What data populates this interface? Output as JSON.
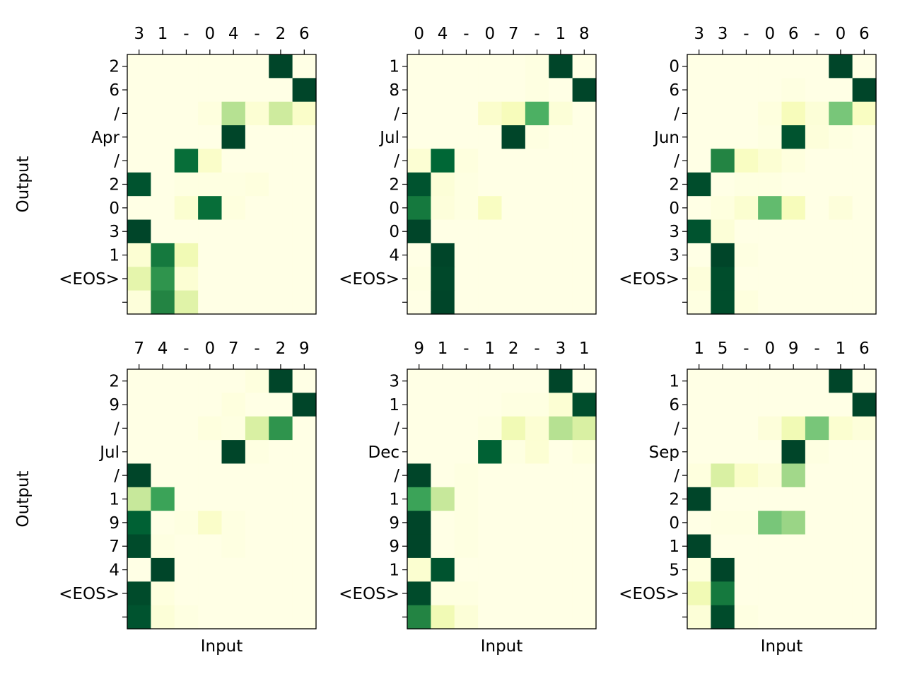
{
  "chart_data": [
    {
      "type": "heatmap",
      "x": [
        "3",
        "1",
        "-",
        "0",
        "4",
        "-",
        "2",
        "6"
      ],
      "y": [
        "2",
        "6",
        "/",
        "Apr",
        "/",
        "2",
        "0",
        "3",
        "1",
        "<EOS>",
        ""
      ],
      "xlabel": "",
      "ylabel": "Output",
      "colormap": "Greens",
      "values": [
        [
          0,
          0,
          0,
          0,
          0,
          0,
          1,
          0
        ],
        [
          0,
          0,
          0,
          0,
          0,
          0,
          0,
          1
        ],
        [
          0,
          0,
          0,
          0.02,
          0.35,
          0.05,
          0.28,
          0.08
        ],
        [
          0,
          0,
          0,
          0,
          1,
          0,
          0,
          0
        ],
        [
          0,
          0,
          0.85,
          0.08,
          0,
          0,
          0,
          0
        ],
        [
          0.95,
          0,
          0.01,
          0.01,
          0.01,
          0.02,
          0,
          0
        ],
        [
          0,
          0,
          0.06,
          0.85,
          0.02,
          0,
          0,
          0
        ],
        [
          1,
          0,
          0,
          0,
          0,
          0,
          0,
          0
        ],
        [
          0.05,
          0.8,
          0.15,
          0,
          0,
          0,
          0,
          0
        ],
        [
          0.2,
          0.7,
          0.05,
          0,
          0,
          0,
          0,
          0
        ],
        [
          0.03,
          0.75,
          0.22,
          0,
          0,
          0,
          0,
          0
        ]
      ]
    },
    {
      "type": "heatmap",
      "x": [
        "0",
        "4",
        "-",
        "0",
        "7",
        "-",
        "1",
        "8"
      ],
      "y": [
        "1",
        "8",
        "/",
        "Jul",
        "/",
        "2",
        "0",
        "0",
        "4",
        "<EOS>",
        ""
      ],
      "xlabel": "",
      "ylabel": "",
      "colormap": "Greens",
      "values": [
        [
          0,
          0,
          0,
          0,
          0,
          0.01,
          1,
          0
        ],
        [
          0,
          0,
          0,
          0,
          0,
          0.01,
          0,
          1
        ],
        [
          0,
          0,
          0,
          0.07,
          0.12,
          0.6,
          0.04,
          0
        ],
        [
          0,
          0,
          0,
          0,
          1,
          0.01,
          0,
          0
        ],
        [
          0.05,
          0.88,
          0.02,
          0,
          0,
          0,
          0,
          0
        ],
        [
          0.95,
          0.04,
          0.01,
          0,
          0,
          0,
          0,
          0
        ],
        [
          0.8,
          0.03,
          0.01,
          0.1,
          0,
          0,
          0,
          0
        ],
        [
          1,
          0,
          0,
          0,
          0,
          0,
          0,
          0
        ],
        [
          0,
          1,
          0,
          0,
          0,
          0,
          0,
          0
        ],
        [
          0.01,
          0.99,
          0,
          0,
          0,
          0,
          0,
          0
        ],
        [
          0,
          1,
          0,
          0,
          0,
          0,
          0,
          0
        ]
      ]
    },
    {
      "type": "heatmap",
      "x": [
        "3",
        "3",
        "-",
        "0",
        "6",
        "-",
        "0",
        "6"
      ],
      "y": [
        "0",
        "6",
        "/",
        "Jun",
        "/",
        "2",
        "0",
        "3",
        "3",
        "<EOS>",
        ""
      ],
      "xlabel": "",
      "ylabel": "",
      "colormap": "Greens",
      "values": [
        [
          0,
          0,
          0,
          0,
          0,
          0,
          1,
          0
        ],
        [
          0,
          0,
          0,
          0,
          0.01,
          0,
          0,
          1
        ],
        [
          0,
          0,
          0,
          0.02,
          0.12,
          0.04,
          0.5,
          0.1
        ],
        [
          0,
          0,
          0,
          0.01,
          0.95,
          0.03,
          0.01,
          0
        ],
        [
          0,
          0.75,
          0.1,
          0.05,
          0.02,
          0,
          0,
          0
        ],
        [
          0.97,
          0,
          0.01,
          0.01,
          0,
          0,
          0,
          0
        ],
        [
          0,
          0.02,
          0.06,
          0.55,
          0.12,
          0,
          0.03,
          0
        ],
        [
          0.95,
          0.04,
          0,
          0,
          0,
          0,
          0,
          0
        ],
        [
          0,
          1,
          0.01,
          0,
          0,
          0,
          0,
          0
        ],
        [
          0.03,
          0.97,
          0,
          0,
          0,
          0,
          0,
          0
        ],
        [
          0.01,
          0.97,
          0.02,
          0,
          0,
          0,
          0,
          0
        ]
      ]
    },
    {
      "type": "heatmap",
      "x": [
        "7",
        "4",
        "-",
        "0",
        "7",
        "-",
        "2",
        "9"
      ],
      "y": [
        "2",
        "9",
        "/",
        "Jul",
        "/",
        "1",
        "9",
        "7",
        "4",
        "<EOS>",
        ""
      ],
      "xlabel": "Input",
      "ylabel": "Output",
      "colormap": "Greens",
      "values": [
        [
          0,
          0,
          0,
          0,
          0,
          0.02,
          1,
          0
        ],
        [
          0,
          0,
          0,
          0,
          0.02,
          0,
          0,
          1
        ],
        [
          0,
          0,
          0,
          0.02,
          0.01,
          0.25,
          0.7,
          0
        ],
        [
          0,
          0,
          0,
          0,
          1,
          0.01,
          0,
          0
        ],
        [
          1,
          0,
          0,
          0,
          0,
          0,
          0,
          0
        ],
        [
          0.3,
          0.65,
          0,
          0,
          0,
          0,
          0,
          0
        ],
        [
          0.9,
          0,
          0.01,
          0.08,
          0.01,
          0,
          0,
          0
        ],
        [
          0.98,
          0.01,
          0,
          0,
          0.01,
          0,
          0,
          0
        ],
        [
          0,
          1,
          0,
          0,
          0,
          0,
          0,
          0
        ],
        [
          0.98,
          0.02,
          0,
          0,
          0,
          0,
          0,
          0
        ],
        [
          0.95,
          0.04,
          0.01,
          0,
          0,
          0,
          0,
          0
        ]
      ]
    },
    {
      "type": "heatmap",
      "x": [
        "9",
        "1",
        "-",
        "1",
        "2",
        "-",
        "3",
        "1"
      ],
      "y": [
        "3",
        "1",
        "/",
        "Dec",
        "/",
        "1",
        "9",
        "9",
        "1",
        "<EOS>",
        ""
      ],
      "xlabel": "Input",
      "ylabel": "",
      "colormap": "Greens",
      "values": [
        [
          0,
          0,
          0,
          0,
          0,
          0,
          1,
          0
        ],
        [
          0,
          0,
          0,
          0,
          0.01,
          0.01,
          0.05,
          0.97
        ],
        [
          0,
          0,
          0,
          0.01,
          0.15,
          0.05,
          0.35,
          0.25
        ],
        [
          0,
          0,
          0,
          0.9,
          0.01,
          0.05,
          0,
          0.02
        ],
        [
          1,
          0,
          0.01,
          0,
          0,
          0,
          0,
          0
        ],
        [
          0.65,
          0.3,
          0.01,
          0,
          0,
          0,
          0,
          0
        ],
        [
          1,
          0,
          0.01,
          0,
          0,
          0,
          0,
          0
        ],
        [
          1,
          0,
          0.01,
          0,
          0,
          0,
          0,
          0
        ],
        [
          0.06,
          0.95,
          0,
          0,
          0,
          0,
          0,
          0
        ],
        [
          0.98,
          0.01,
          0.01,
          0,
          0,
          0,
          0,
          0
        ],
        [
          0.75,
          0.15,
          0.04,
          0,
          0,
          0,
          0,
          0
        ]
      ]
    },
    {
      "type": "heatmap",
      "x": [
        "1",
        "5",
        "-",
        "0",
        "9",
        "-",
        "1",
        "6"
      ],
      "y": [
        "1",
        "6",
        "/",
        "Sep",
        "/",
        "2",
        "0",
        "1",
        "5",
        "<EOS>",
        ""
      ],
      "xlabel": "Input",
      "ylabel": "",
      "colormap": "Greens",
      "values": [
        [
          0,
          0,
          0,
          0,
          0,
          0,
          1,
          0
        ],
        [
          0,
          0,
          0,
          0,
          0,
          0,
          0,
          1
        ],
        [
          0,
          0,
          0,
          0.03,
          0.15,
          0.5,
          0.06,
          0.03
        ],
        [
          0,
          0,
          0,
          0,
          1,
          0.01,
          0,
          0
        ],
        [
          0.02,
          0.25,
          0.08,
          0.03,
          0.4,
          0,
          0,
          0
        ],
        [
          1,
          0,
          0,
          0,
          0,
          0,
          0,
          0
        ],
        [
          0,
          0.01,
          0.01,
          0.5,
          0.42,
          0,
          0,
          0
        ],
        [
          1,
          0,
          0,
          0,
          0,
          0,
          0,
          0
        ],
        [
          0.02,
          1,
          0,
          0,
          0,
          0,
          0,
          0
        ],
        [
          0.15,
          0.8,
          0,
          0,
          0,
          0,
          0,
          0
        ],
        [
          0.04,
          0.98,
          0.01,
          0,
          0,
          0,
          0,
          0
        ]
      ]
    }
  ]
}
